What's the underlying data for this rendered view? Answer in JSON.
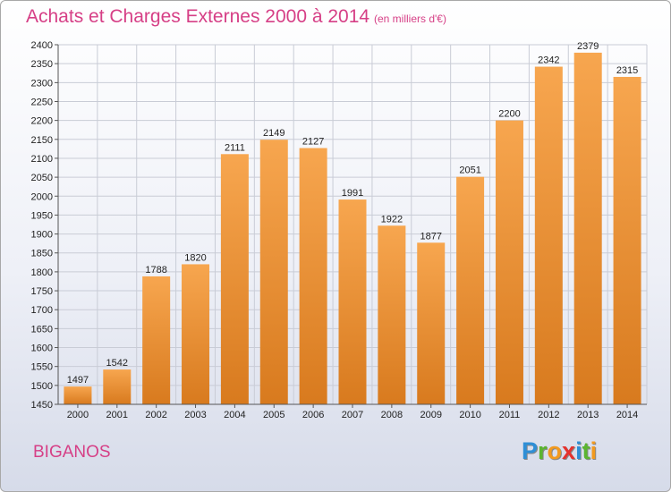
{
  "header": {
    "title": "Achats et Charges Externes 2000 à 2014",
    "subtitle": "(en milliers d'€)"
  },
  "footer": {
    "city": "BIGANOS",
    "logo_letters": [
      {
        "ch": "P",
        "color": "#2e8fd6"
      },
      {
        "ch": "r",
        "color": "#5bb530"
      },
      {
        "ch": "o",
        "color": "#f29a1f"
      },
      {
        "ch": "x",
        "color": "#e5322d"
      },
      {
        "ch": "i",
        "color": "#2e8fd6"
      },
      {
        "ch": "t",
        "color": "#5bb530"
      },
      {
        "ch": "i",
        "color": "#f29a1f"
      }
    ]
  },
  "chart_data": {
    "type": "bar",
    "title": "Achats et Charges Externes 2000 à 2014",
    "subtitle": "(en milliers d'€)",
    "xlabel": "",
    "ylabel": "",
    "categories": [
      "2000",
      "2001",
      "2002",
      "2003",
      "2004",
      "2005",
      "2006",
      "2007",
      "2008",
      "2009",
      "2010",
      "2011",
      "2012",
      "2013",
      "2014"
    ],
    "values": [
      1497,
      1542,
      1788,
      1820,
      2111,
      2149,
      2127,
      1991,
      1922,
      1877,
      2051,
      2200,
      2342,
      2379,
      2315
    ],
    "ylim": [
      1450,
      2400
    ],
    "ytick_step": 50,
    "grid": true,
    "bar_color_top": "#f7a64f",
    "bar_color_bottom": "#d87a1e",
    "legend": "none"
  }
}
